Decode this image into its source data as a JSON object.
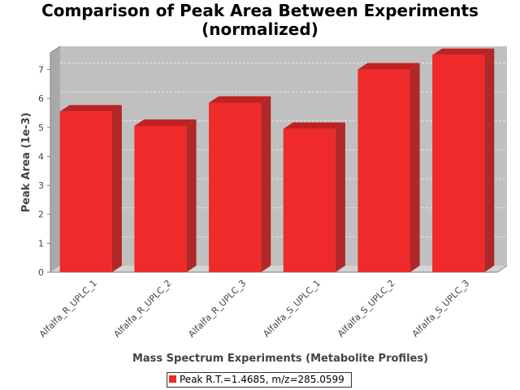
{
  "chart_data": {
    "type": "bar",
    "title": "Comparison of Peak Area Between Experiments",
    "subtitle": "(normalized)",
    "xlabel": "Mass Spectrum Experiments (Metabolite Profiles)",
    "ylabel": "Peak Area (1e-3)",
    "ylim": [
      0,
      7.8
    ],
    "yticks": [
      "0",
      "1",
      "2",
      "3",
      "4",
      "5",
      "6",
      "7"
    ],
    "categories": [
      "Alfalfa_R_UPLC_1",
      "Alfalfa_R_UPLC_2",
      "Alfalfa_R_UPLC_3",
      "Alfalfa_S_UPLC_1",
      "Alfalfa_S_UPLC_2",
      "Alfalfa_S_UPLC_3"
    ],
    "series": [
      {
        "name": "Peak R.T.=1.4685, m/z=285.0599",
        "values": [
          5.55,
          5.05,
          5.85,
          4.95,
          7.0,
          7.5
        ]
      }
    ],
    "grid": true,
    "legend_position": "bottom",
    "colors": {
      "bar_front": "#ee2a2a",
      "bar_top": "#bf2222",
      "bar_side": "#b02727",
      "plot_back": "#c0c0c0",
      "plot_floor": "#d4d4d4",
      "plot_side": "#a9a9a9",
      "grid": "#e8e8e8"
    }
  }
}
